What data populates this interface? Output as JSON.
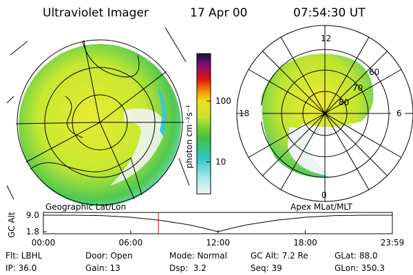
{
  "header": {
    "title": "Ultraviolet Imager",
    "date": "17 Apr 00",
    "time": "07:54:30 UT"
  },
  "maps": {
    "left_label": "Geographic Lat/Lon",
    "right_label": "Apex MLat/MLT",
    "mlt_labels": [
      "12",
      "18",
      "6",
      "0"
    ],
    "mlat_labels": [
      "60",
      "70",
      "80"
    ]
  },
  "colorbar": {
    "label": "photon cm⁻²s⁻¹",
    "scale": "log",
    "lim": [
      3,
      600
    ],
    "ticks": [
      10,
      100
    ]
  },
  "altitude_plot": {
    "ylabel": "GC Alt",
    "xlim": [
      0,
      23.9833
    ],
    "ylim": [
      1.8,
      9.0
    ],
    "xticks": [
      {
        "value": 0,
        "label": "00:00"
      },
      {
        "value": 6,
        "label": "06:00"
      },
      {
        "value": 12,
        "label": "12:00"
      },
      {
        "value": 18,
        "label": "18:00"
      },
      {
        "value": 23.9833,
        "label": "23:59"
      }
    ],
    "yticks": [
      {
        "value": 9.0,
        "label": "9.0"
      },
      {
        "value": 1.8,
        "label": "1.8"
      }
    ],
    "x": [
      0,
      2,
      4,
      6,
      8,
      10,
      11,
      12,
      13,
      14,
      16,
      18,
      20,
      22,
      23.9833
    ],
    "values": [
      9.0,
      9.0,
      8.8,
      8.1,
      6.8,
      4.8,
      3.4,
      1.8,
      3.4,
      4.8,
      6.8,
      8.1,
      8.8,
      9.0,
      9.0
    ],
    "marker": 7.9083,
    "marker_color": "#e00000",
    "line_color": "#000000"
  },
  "info": [
    [
      "Flt: LBHL",
      "Door: Open",
      "Mode: Normal",
      "GC Alt: 7.2 Re",
      "GLat: 88.0"
    ],
    [
      "IP: 36.0",
      "Gain: 13",
      "Dsp:  3.2",
      "Seq: 39",
      "GLon: 350.3"
    ]
  ]
}
